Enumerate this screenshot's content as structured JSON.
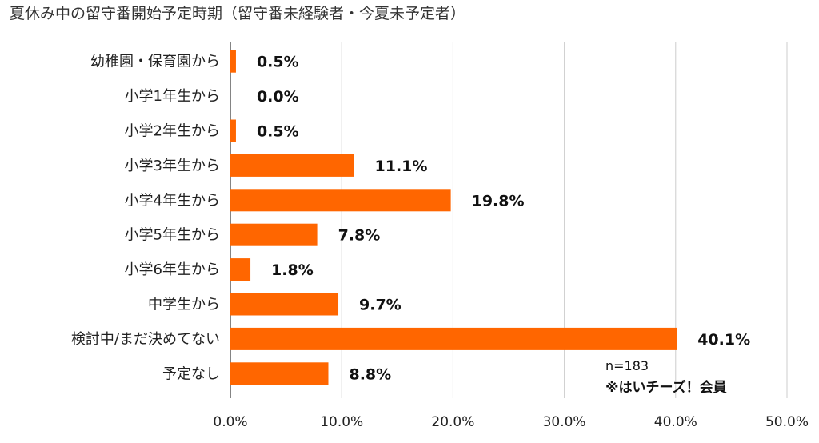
{
  "chart_data": {
    "type": "bar",
    "orientation": "horizontal",
    "title": "夏休み中の留守番開始予定時期（留守番未経験者・今夏未予定者）",
    "categories": [
      "幼稚園・保育園から",
      "小学1年生から",
      "小学2年生から",
      "小学3年生から",
      "小学4年生から",
      "小学5年生から",
      "小学6年生から",
      "中学生から",
      "検討中/まだ決めてない",
      "予定なし"
    ],
    "values": [
      0.5,
      0.0,
      0.5,
      11.1,
      19.8,
      7.8,
      1.8,
      9.7,
      40.1,
      8.8
    ],
    "value_labels": [
      "0.5%",
      "0.0%",
      "0.5%",
      "11.1%",
      "19.8%",
      "7.8%",
      "1.8%",
      "9.7%",
      "40.1%",
      "8.8%"
    ],
    "xlim": [
      0,
      50
    ],
    "xticks": [
      "0.0%",
      "10.0%",
      "20.0%",
      "30.0%",
      "40.0%",
      "50.0%"
    ],
    "grid": true,
    "bar_color": "#ff6600",
    "notes": [
      "n=183",
      "※はいチーズ！会員"
    ]
  }
}
